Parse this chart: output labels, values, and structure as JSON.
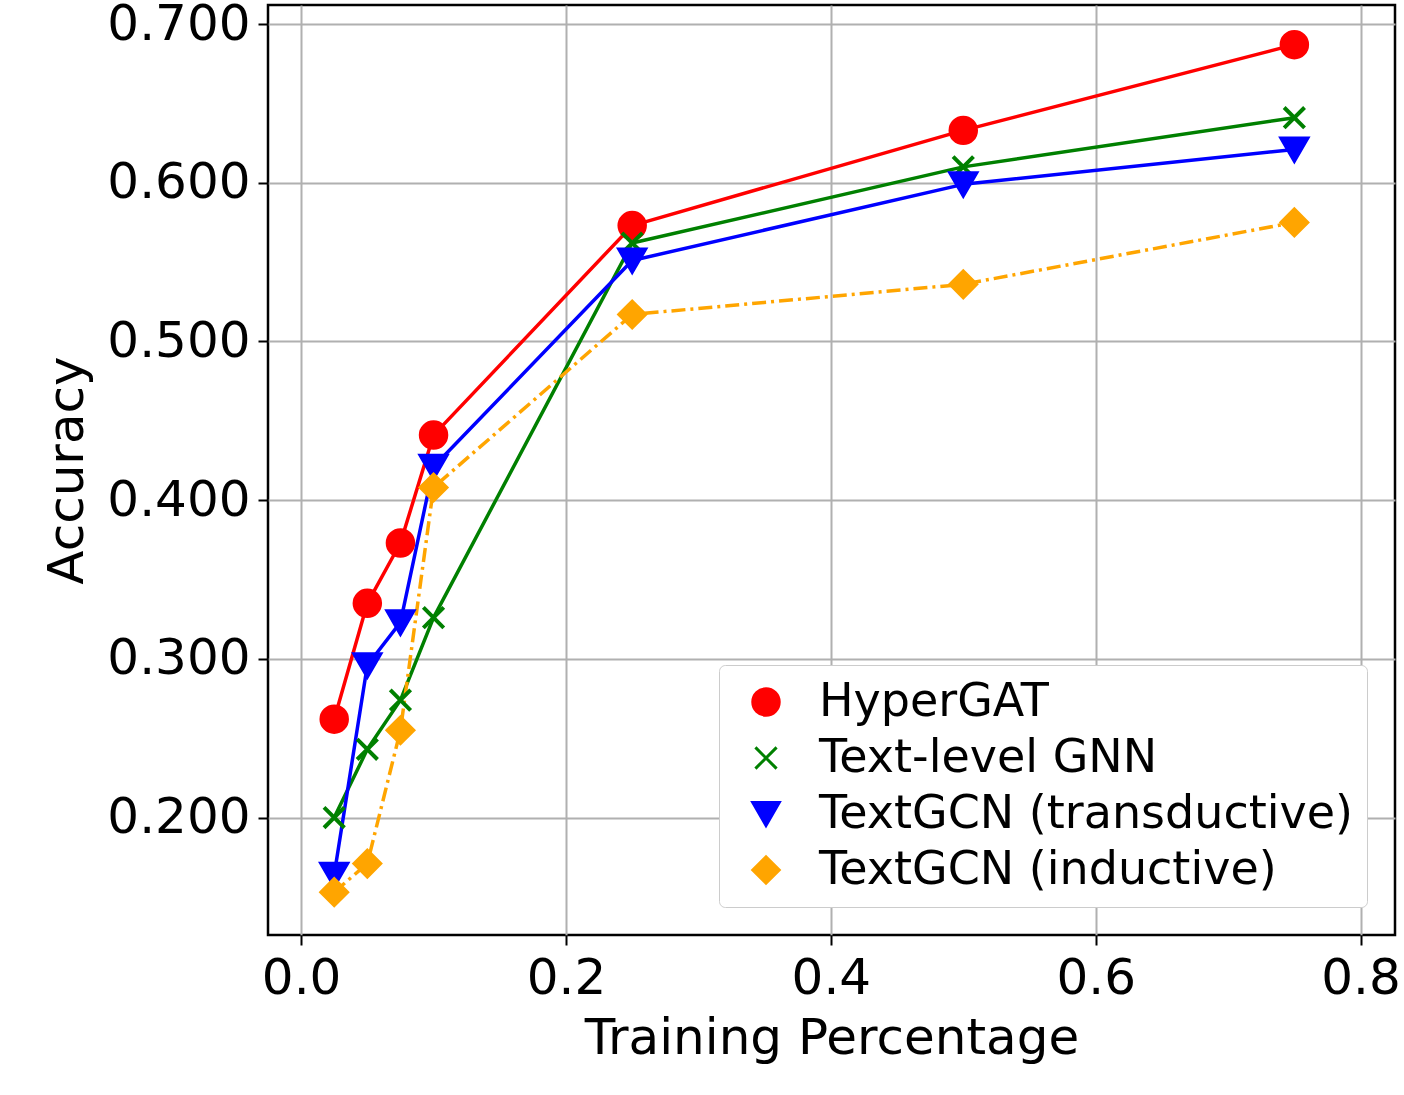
{
  "chart_data": {
    "type": "line",
    "xlabel": "Training Percentage",
    "ylabel": "Accuracy",
    "x": [
      0.025,
      0.05,
      0.075,
      0.1,
      0.25,
      0.5,
      0.75
    ],
    "series": [
      {
        "name": "HyperGAT",
        "color": "#ff0000",
        "marker": "circle",
        "line_style": "solid",
        "values": [
          0.262,
          0.335,
          0.373,
          0.441,
          0.573,
          0.633,
          0.687
        ]
      },
      {
        "name": "Text-level GNN",
        "color": "#008000",
        "marker": "cross",
        "line_style": "solid",
        "values": [
          0.2,
          0.243,
          0.274,
          0.326,
          0.562,
          0.61,
          0.641
        ]
      },
      {
        "name": "TextGCN (transductive)",
        "color": "#0000ff",
        "marker": "triangle",
        "line_style": "solid",
        "values": [
          0.164,
          0.296,
          0.323,
          0.421,
          0.551,
          0.599,
          0.621
        ]
      },
      {
        "name": "TextGCN (inductive)",
        "color": "#ffa500",
        "marker": "diamond",
        "line_style": "dashed",
        "values": [
          0.153,
          0.171,
          0.255,
          0.408,
          0.517,
          0.536,
          0.575
        ]
      }
    ],
    "xlim": [
      -0.025,
      0.826
    ],
    "ylim": [
      0.126,
      0.712
    ],
    "xticks": [
      {
        "value": 0,
        "label": "0.0"
      },
      {
        "value": 0.2,
        "label": "0.2"
      },
      {
        "value": 0.4,
        "label": "0.4"
      },
      {
        "value": 0.6,
        "label": "0.6"
      },
      {
        "value": 0.8,
        "label": "0.8"
      }
    ],
    "yticks": [
      {
        "value": 0.2,
        "label": "0.200"
      },
      {
        "value": 0.3,
        "label": "0.300"
      },
      {
        "value": 0.4,
        "label": "0.400"
      },
      {
        "value": 0.5,
        "label": "0.500"
      },
      {
        "value": 0.6,
        "label": "0.600"
      },
      {
        "value": 0.7,
        "label": "0.700"
      }
    ],
    "grid": true,
    "legend": "bottom right"
  }
}
